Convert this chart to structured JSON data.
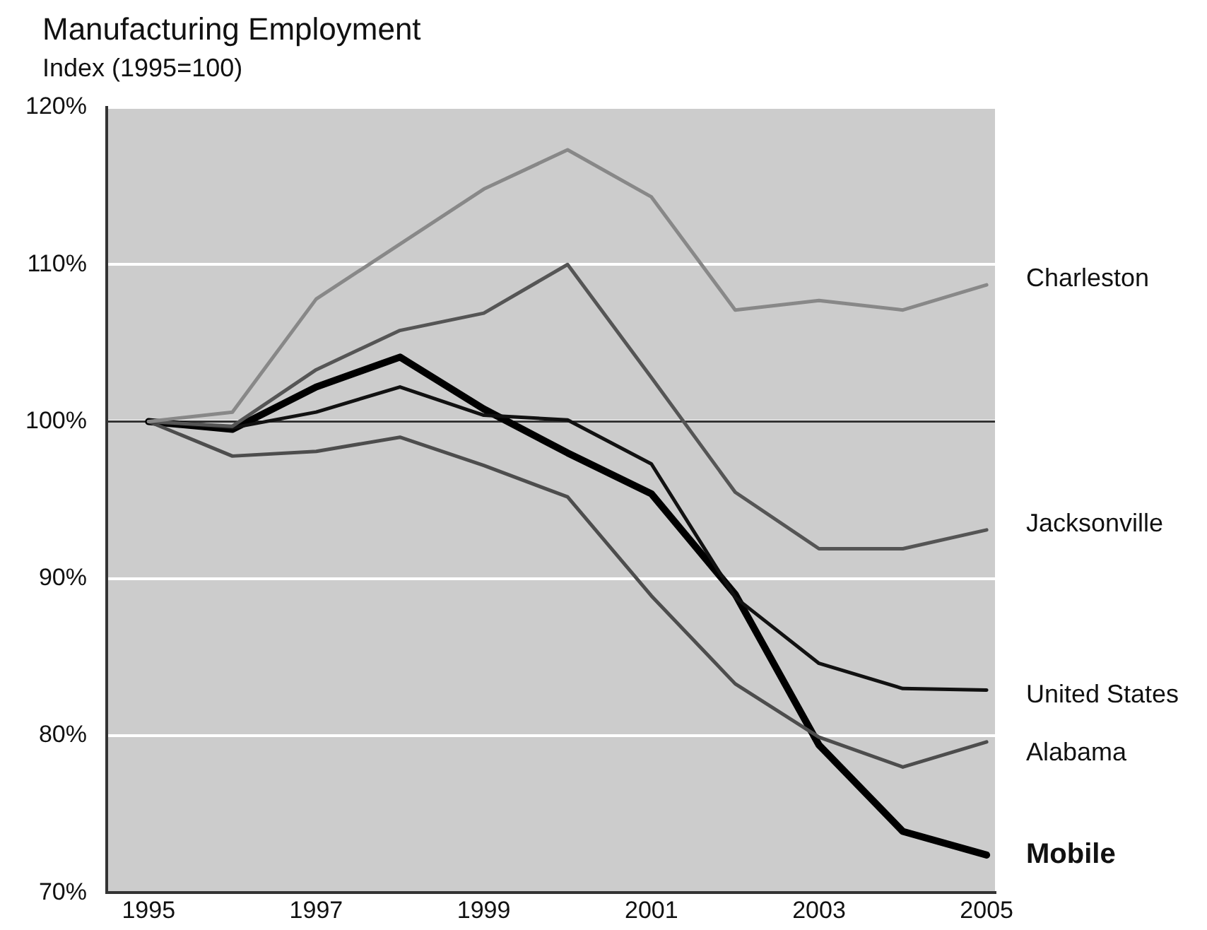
{
  "chart_data": {
    "type": "line",
    "title": "Manufacturing Employment",
    "subtitle": "Index (1995=100)",
    "x": [
      1995,
      1996,
      1997,
      1998,
      1999,
      2000,
      2001,
      2002,
      2003,
      2004,
      2005
    ],
    "xlim": [
      1994.5,
      2005.1
    ],
    "xticks": [
      1995,
      1997,
      1999,
      2001,
      2003,
      2005
    ],
    "ylim": [
      70,
      120
    ],
    "yticks": [
      {
        "value": 70,
        "label": "70%"
      },
      {
        "value": 80,
        "label": "80%"
      },
      {
        "value": 90,
        "label": "90%"
      },
      {
        "value": 100,
        "label": "100%"
      },
      {
        "value": 110,
        "label": "110%"
      },
      {
        "value": 120,
        "label": "120%"
      }
    ],
    "grid": "y",
    "legend": false,
    "marker": "none",
    "line_style": "solid",
    "ref_lines": [
      {
        "axis": "y",
        "value": 100,
        "color": "#333333"
      }
    ],
    "series": [
      {
        "name": "Charleston",
        "color": "#888888",
        "values": [
          100,
          100.6,
          107.8,
          111.3,
          114.8,
          117.3,
          114.3,
          107.1,
          107.7,
          107.1,
          108.7
        ]
      },
      {
        "name": "Jacksonville",
        "color": "#555555",
        "values": [
          100,
          99.7,
          103.3,
          105.8,
          106.9,
          110.0,
          102.8,
          95.5,
          91.9,
          91.9,
          93.1
        ]
      },
      {
        "name": "United States",
        "color": "#111111",
        "values": [
          100,
          99.6,
          100.6,
          102.2,
          100.4,
          100.1,
          97.3,
          88.8,
          84.6,
          83.0,
          82.9
        ]
      },
      {
        "name": "Alabama",
        "color": "#4d4d4d",
        "values": [
          100,
          97.8,
          98.1,
          99.0,
          97.2,
          95.2,
          88.9,
          83.3,
          79.9,
          78.0,
          79.6
        ]
      },
      {
        "name": "Mobile",
        "color": "#000000",
        "values": [
          100,
          99.5,
          102.2,
          104.1,
          100.8,
          98.0,
          95.4,
          89.0,
          79.4,
          73.9,
          72.4
        ]
      }
    ]
  }
}
